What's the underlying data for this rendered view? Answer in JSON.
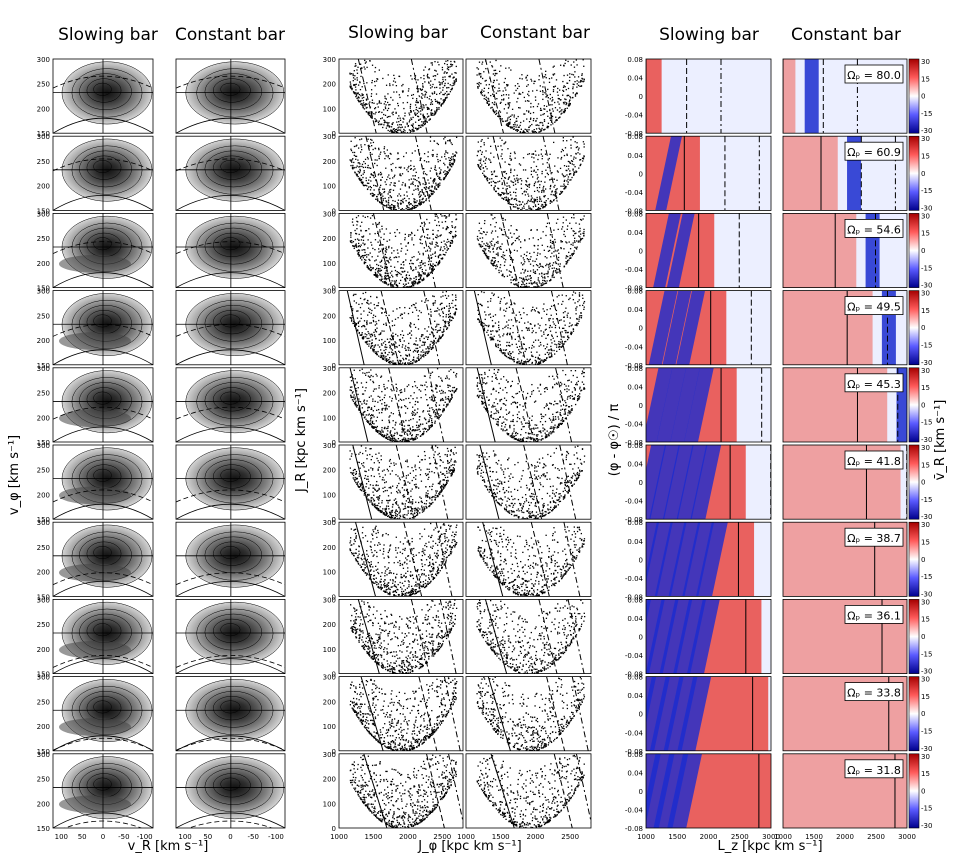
{
  "figure": {
    "column_titles": [
      "Slowing bar",
      "Constant bar",
      "Slowing bar",
      "Constant bar",
      "Slowing bar",
      "Constant bar"
    ],
    "pattern_speed_symbol": "Ωₚ",
    "omega_values": [
      "80.0",
      "60.9",
      "54.6",
      "49.5",
      "45.3",
      "41.8",
      "38.7",
      "36.1",
      "33.8",
      "31.8"
    ],
    "colorbar_label": "v̄_R [km s⁻¹]",
    "colorbar_ticks": [
      "30",
      "15",
      "0",
      "-15",
      "-30"
    ]
  },
  "chart_data": [
    {
      "type": "heatmap",
      "panel_group": "velocity-space density contours",
      "xlabel": "v_R [km s⁻¹]",
      "ylabel": "v_φ [km s⁻¹]",
      "xlim": [
        120,
        -120
      ],
      "ylim": [
        150,
        300
      ],
      "xticks": [
        "100",
        "50",
        "0",
        "-50",
        "-100"
      ],
      "yticks": [
        "150",
        "200",
        "250",
        "300"
      ],
      "reference_v_phi": 232
    },
    {
      "type": "scatter",
      "panel_group": "action-space distribution",
      "xlabel": "J_φ [kpc km s⁻¹]",
      "ylabel": "J_R [kpc km s⁻¹]",
      "xlim": [
        1000,
        2800
      ],
      "ylim": [
        0,
        300
      ],
      "xticks": [
        "1000",
        "1500",
        "2000",
        "2500"
      ],
      "yticks": [
        "0",
        "100",
        "200",
        "300"
      ]
    },
    {
      "type": "heatmap",
      "panel_group": "mean radial velocity in (L_z, φ) plane",
      "xlabel": "L_z [kpc km s⁻¹]",
      "ylabel": "(φ - φ☉) / π",
      "xlim": [
        1000,
        3000
      ],
      "ylim": [
        -0.08,
        0.08
      ],
      "xticks": [
        "1000",
        "1500",
        "2000",
        "2500",
        "3000"
      ],
      "yticks": [
        "-0.08",
        "-0.04",
        "0",
        "0.04",
        "0.08"
      ],
      "colorbar_range": [
        -30,
        30
      ]
    }
  ]
}
